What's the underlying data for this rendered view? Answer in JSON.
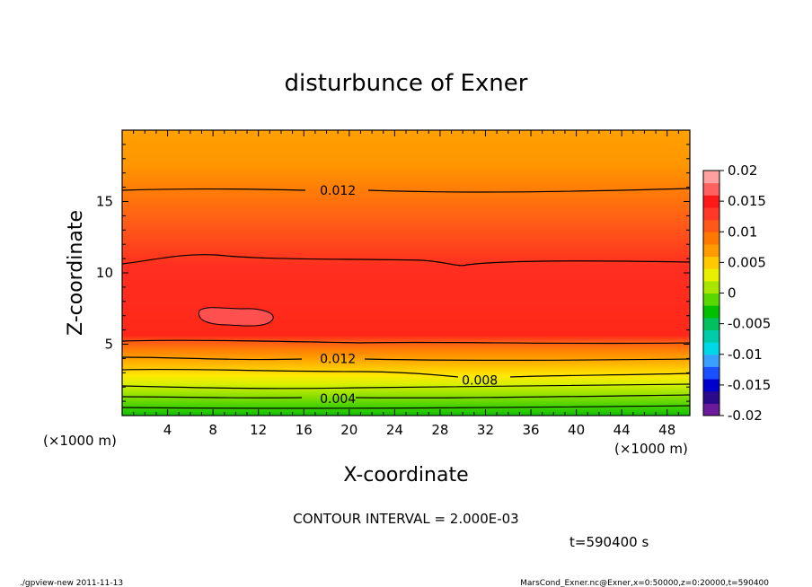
{
  "chart_data": {
    "type": "contour",
    "title": "disturbunce of Exner",
    "xlabel": "X-coordinate",
    "ylabel": "Z-coordinate",
    "x_unit_left": "(×1000 m)",
    "x_unit_right": "(×1000 m)",
    "xlim": [
      0,
      50
    ],
    "ylim": [
      0,
      20
    ],
    "x_ticks": [
      4,
      8,
      12,
      16,
      20,
      24,
      28,
      32,
      36,
      40,
      44,
      48
    ],
    "y_ticks": [
      5,
      10,
      15
    ],
    "colorbar": {
      "ticks": [
        "0.02",
        "0.015",
        "0.01",
        "0.005",
        "0",
        "-0.005",
        "-0.01",
        "-0.015",
        "-0.02"
      ],
      "min": -0.02,
      "max": 0.02,
      "colors": [
        "#6a1a9a",
        "#2a0a8a",
        "#0000cd",
        "#1a50ff",
        "#3aa0ff",
        "#00d8e8",
        "#00ccaa",
        "#00c060",
        "#00c000",
        "#58d800",
        "#a8e600",
        "#e8f000",
        "#ffc800",
        "#ff9a00",
        "#ff7800",
        "#ff5818",
        "#ff3828",
        "#ff1818",
        "#ff6060",
        "#ffa0a0"
      ]
    },
    "contour_labels": [
      {
        "text": "0.012",
        "x": 19,
        "z": 15.8
      },
      {
        "text": "0.012",
        "x": 19,
        "z": 4
      },
      {
        "text": "0.008",
        "x": 31.5,
        "z": 2.5
      },
      {
        "text": "0.004",
        "x": 19,
        "z": 1.2
      }
    ],
    "contour_interval": "CONTOUR INTERVAL = 2.000E-03",
    "time": "t=590400 s"
  },
  "footer": {
    "left": "./gpview-new   2011-11-13",
    "right": "MarsCond_Exner.nc@Exner,x=0:50000,z=0:20000,t=590400"
  }
}
